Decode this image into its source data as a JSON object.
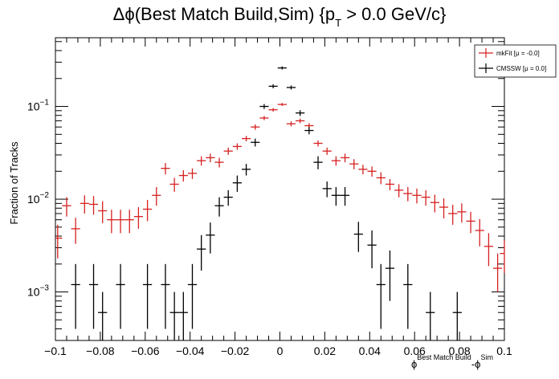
{
  "chart_data": {
    "type": "scatter",
    "title_main": "Δϕ(Best Match Build,Sim) {p",
    "title_sub": "T",
    "title_rest": " > 0.0 GeV/c}",
    "ylabel": "Fraction of Tracks",
    "xlabel_phi1": "ϕ",
    "xlabel_sub1": "Best Match Build",
    "xlabel_mid": "-ϕ",
    "xlabel_sub2": "Sim",
    "xlim": [
      -0.1,
      0.1
    ],
    "ylim": [
      0.0003,
      0.55
    ],
    "yscale": "log",
    "x_ticks": [
      -0.1,
      -0.08,
      -0.06,
      -0.04,
      -0.02,
      0,
      0.02,
      0.04,
      0.06,
      0.08,
      0.1
    ],
    "x_tick_labels": [
      "−0.1",
      "−0.08",
      "−0.06",
      "−0.04",
      "−0.02",
      "0",
      "0.02",
      "0.04",
      "0.06",
      "0.08",
      "0.1"
    ],
    "y_ticks": [
      0.001,
      0.01,
      0.1
    ],
    "y_tick_labels_base": [
      "10",
      "10",
      "10"
    ],
    "y_tick_labels_exp": [
      "−3",
      "−2",
      "−1"
    ],
    "legend_position": "top-right",
    "series": [
      {
        "name": "mkFit  [μ = -0.0]",
        "color": "#d62020",
        "x": [
          -0.099,
          -0.095,
          -0.091,
          -0.087,
          -0.083,
          -0.079,
          -0.075,
          -0.071,
          -0.067,
          -0.063,
          -0.059,
          -0.055,
          -0.051,
          -0.047,
          -0.043,
          -0.039,
          -0.035,
          -0.031,
          -0.027,
          -0.023,
          -0.019,
          -0.015,
          -0.011,
          -0.007,
          -0.003,
          0.001,
          0.005,
          0.009,
          0.013,
          0.017,
          0.021,
          0.025,
          0.029,
          0.033,
          0.037,
          0.041,
          0.045,
          0.049,
          0.053,
          0.057,
          0.061,
          0.065,
          0.069,
          0.073,
          0.077,
          0.081,
          0.085,
          0.089,
          0.093,
          0.097,
          0.1
        ],
        "y": [
          0.0038,
          0.0085,
          0.0048,
          0.009,
          0.0088,
          0.0075,
          0.006,
          0.006,
          0.006,
          0.0065,
          0.0078,
          0.011,
          0.0215,
          0.0145,
          0.018,
          0.019,
          0.026,
          0.028,
          0.025,
          0.033,
          0.037,
          0.045,
          0.06,
          0.075,
          0.092,
          0.105,
          0.065,
          0.07,
          0.062,
          0.04,
          0.033,
          0.026,
          0.028,
          0.024,
          0.021,
          0.02,
          0.017,
          0.0145,
          0.0125,
          0.0115,
          0.011,
          0.0105,
          0.0092,
          0.0082,
          0.007,
          0.0073,
          0.0058,
          0.0046,
          0.0031,
          0.0018,
          0.0026
        ],
        "err_lo": [
          0.0015,
          0.002,
          0.0015,
          0.002,
          0.002,
          0.002,
          0.0017,
          0.0017,
          0.0017,
          0.0017,
          0.002,
          0.0025,
          0.003,
          0.0025,
          0.0025,
          0.0025,
          0.003,
          0.003,
          0.003,
          0.003,
          0.003,
          0.003,
          0.004,
          0.004,
          0.004,
          0.004,
          0.004,
          0.004,
          0.004,
          0.003,
          0.003,
          0.003,
          0.003,
          0.003,
          0.0025,
          0.0025,
          0.0025,
          0.002,
          0.002,
          0.002,
          0.002,
          0.002,
          0.002,
          0.002,
          0.0017,
          0.0017,
          0.0015,
          0.0015,
          0.0012,
          0.0008,
          0.001
        ],
        "err_hi": [
          0.0015,
          0.002,
          0.0015,
          0.002,
          0.002,
          0.002,
          0.0017,
          0.0017,
          0.0017,
          0.0017,
          0.002,
          0.0025,
          0.003,
          0.0025,
          0.0025,
          0.0025,
          0.003,
          0.003,
          0.003,
          0.003,
          0.003,
          0.003,
          0.004,
          0.004,
          0.004,
          0.004,
          0.004,
          0.004,
          0.004,
          0.003,
          0.003,
          0.003,
          0.003,
          0.003,
          0.0025,
          0.0025,
          0.0025,
          0.002,
          0.002,
          0.002,
          0.002,
          0.002,
          0.002,
          0.002,
          0.0017,
          0.0017,
          0.0015,
          0.0015,
          0.0012,
          0.0008,
          0.001
        ]
      },
      {
        "name": "CMSSW  [μ =  0.0]",
        "color": "#000000",
        "x": [
          -0.091,
          -0.083,
          -0.079,
          -0.071,
          -0.059,
          -0.051,
          -0.047,
          -0.043,
          -0.039,
          -0.035,
          -0.031,
          -0.027,
          -0.023,
          -0.019,
          -0.015,
          -0.011,
          -0.007,
          -0.003,
          0.001,
          0.005,
          0.009,
          0.013,
          0.017,
          0.021,
          0.025,
          0.029,
          0.035,
          0.041,
          0.045,
          0.049,
          0.057,
          0.067,
          0.079
        ],
        "y": [
          0.0012,
          0.0012,
          0.0006,
          0.0012,
          0.0012,
          0.0012,
          0.0006,
          0.0006,
          0.0012,
          0.0029,
          0.0041,
          0.0085,
          0.0105,
          0.015,
          0.021,
          0.041,
          0.1,
          0.165,
          0.26,
          0.16,
          0.085,
          0.055,
          0.025,
          0.013,
          0.011,
          0.011,
          0.0042,
          0.0032,
          0.0012,
          0.0018,
          0.0012,
          0.0006,
          0.0006
        ],
        "err_lo": [
          0.0008,
          0.0008,
          0.0004,
          0.0008,
          0.0008,
          0.0008,
          0.0004,
          0.0004,
          0.0008,
          0.0012,
          0.0015,
          0.002,
          0.002,
          0.003,
          0.003,
          0.004,
          0.006,
          0.008,
          0.01,
          0.008,
          0.006,
          0.005,
          0.004,
          0.0025,
          0.0025,
          0.0025,
          0.0015,
          0.0014,
          0.0008,
          0.001,
          0.0008,
          0.0004,
          0.0004
        ],
        "err_hi": [
          0.0008,
          0.0008,
          0.0004,
          0.0008,
          0.0008,
          0.0008,
          0.0004,
          0.0004,
          0.0008,
          0.0012,
          0.0015,
          0.002,
          0.002,
          0.003,
          0.003,
          0.004,
          0.006,
          0.008,
          0.01,
          0.008,
          0.006,
          0.005,
          0.004,
          0.0025,
          0.0025,
          0.0025,
          0.0015,
          0.0014,
          0.0008,
          0.001,
          0.0008,
          0.0004,
          0.0004
        ]
      }
    ]
  }
}
